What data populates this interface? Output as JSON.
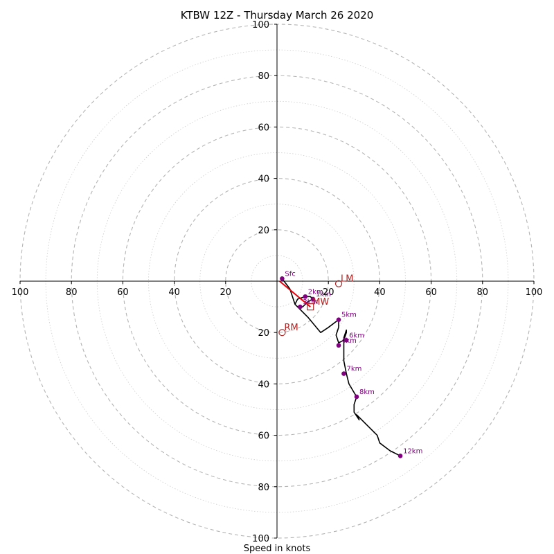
{
  "chart_data": {
    "type": "hodograph",
    "title": "KTBW 12Z - Thursday March 26 2020",
    "xlabel": "Speed in knots",
    "max_speed": 100,
    "ring_step": 20,
    "minor_ring_step": 10,
    "axis_ticks": [
      {
        "value": "100",
        "pos": -100,
        "axis": "x"
      },
      {
        "value": "80",
        "pos": -80,
        "axis": "x"
      },
      {
        "value": "60",
        "pos": -60,
        "axis": "x"
      },
      {
        "value": "40",
        "pos": -40,
        "axis": "x"
      },
      {
        "value": "20",
        "pos": -20,
        "axis": "x"
      },
      {
        "value": "20",
        "pos": 20,
        "axis": "x"
      },
      {
        "value": "40",
        "pos": 40,
        "axis": "x"
      },
      {
        "value": "60",
        "pos": 60,
        "axis": "x"
      },
      {
        "value": "80",
        "pos": 80,
        "axis": "x"
      },
      {
        "value": "100",
        "pos": 100,
        "axis": "x"
      },
      {
        "value": "100",
        "pos": 100,
        "axis": "y"
      },
      {
        "value": "80",
        "pos": 80,
        "axis": "y"
      },
      {
        "value": "60",
        "pos": 60,
        "axis": "y"
      },
      {
        "value": "40",
        "pos": 40,
        "axis": "y"
      },
      {
        "value": "20",
        "pos": 20,
        "axis": "y"
      },
      {
        "value": "20",
        "pos": -20,
        "axis": "y"
      },
      {
        "value": "40",
        "pos": -40,
        "axis": "y"
      },
      {
        "value": "60",
        "pos": -60,
        "axis": "y"
      },
      {
        "value": "80",
        "pos": -80,
        "axis": "y"
      },
      {
        "value": "100",
        "pos": -100,
        "axis": "y"
      }
    ],
    "trace": [
      [
        2,
        1
      ],
      [
        5,
        -3
      ],
      [
        6,
        -6
      ],
      [
        7,
        -9
      ],
      [
        8,
        -7
      ],
      [
        11,
        -6
      ],
      [
        13,
        -6
      ],
      [
        14,
        -7
      ],
      [
        12,
        -8
      ],
      [
        11,
        -9
      ],
      [
        10,
        -10
      ],
      [
        8,
        -10
      ],
      [
        7,
        -9
      ],
      [
        9,
        -11
      ],
      [
        12,
        -14
      ],
      [
        17,
        -20
      ],
      [
        20,
        -18
      ],
      [
        24,
        -15
      ],
      [
        24,
        -18
      ],
      [
        23,
        -21
      ],
      [
        24,
        -24
      ],
      [
        26,
        -23
      ],
      [
        27,
        -20
      ],
      [
        27,
        -19
      ],
      [
        26,
        -22
      ],
      [
        26,
        -25
      ],
      [
        26,
        -31
      ],
      [
        27,
        -36
      ],
      [
        28,
        -40
      ],
      [
        31,
        -45
      ],
      [
        30,
        -48
      ],
      [
        30,
        -51
      ],
      [
        32,
        -54
      ],
      [
        31,
        -52
      ],
      [
        35,
        -56
      ],
      [
        39,
        -60
      ],
      [
        40,
        -63
      ],
      [
        44,
        -66
      ],
      [
        48,
        -68
      ]
    ],
    "height_markers": [
      {
        "label": "Sfc",
        "u": 2,
        "v": 1
      },
      {
        "label": "1km",
        "u": 14,
        "v": -7
      },
      {
        "label": "2km",
        "u": 11,
        "v": -6
      },
      {
        "label": "3km",
        "u": 9,
        "v": -10
      },
      {
        "label": "5km",
        "u": 24,
        "v": -15
      },
      {
        "label": "6km",
        "u": 27,
        "v": -23
      },
      {
        "label": "4km",
        "u": 24,
        "v": -25
      },
      {
        "label": "7km",
        "u": 26,
        "v": -36
      },
      {
        "label": "8km",
        "u": 31,
        "v": -45
      },
      {
        "label": "12km",
        "u": 48,
        "v": -68
      }
    ],
    "storm_motions": [
      {
        "label": "LM",
        "u": 24,
        "v": -1,
        "marker": "circle"
      },
      {
        "label": "RM",
        "u": 2,
        "v": -20,
        "marker": "circle"
      },
      {
        "label": "MW",
        "u": 13,
        "v": -10,
        "marker": "square"
      }
    ],
    "shear_vector": {
      "from": [
        1,
        0
      ],
      "to": [
        13,
        -10
      ]
    },
    "colors": {
      "trace": "#000000",
      "marker": "#800080",
      "marker_label": "#800080",
      "storm_motion": "#b22222",
      "shear_vector": "#e8000b",
      "major_ring": "#b4b4b4",
      "minor_ring": "#d2d2d2",
      "axis": "#000000"
    }
  }
}
